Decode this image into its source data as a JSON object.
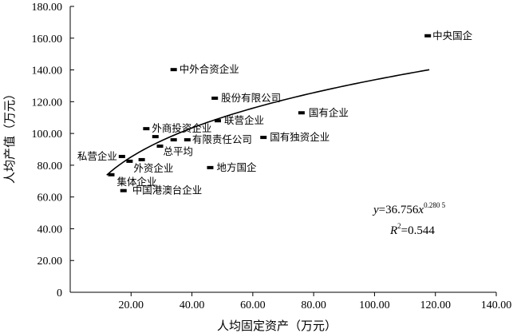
{
  "chart_data": {
    "type": "scatter",
    "title": "",
    "xlabel": "人均固定资产（万元）",
    "ylabel": "人均产值（万元）",
    "xlim": [
      0,
      140
    ],
    "ylim": [
      0,
      180
    ],
    "x_ticks": [
      "20.00",
      "40.00",
      "60.00",
      "80.00",
      "100.00",
      "120.00",
      "140.00"
    ],
    "y_ticks": [
      "0",
      "20.00",
      "40.00",
      "60.00",
      "80.00",
      "100.00",
      "120.00",
      "140.00",
      "160.00",
      "180.00"
    ],
    "points": [
      {
        "label": "中央国企",
        "x": 117.5,
        "y": 161.5
      },
      {
        "label": "中外合资企业",
        "x": 34.0,
        "y": 140.2
      },
      {
        "label": "股份有限公司",
        "x": 47.5,
        "y": 122.2
      },
      {
        "label": "国有企业",
        "x": 76.0,
        "y": 113.0
      },
      {
        "label": "联营企业",
        "x": 48.5,
        "y": 108.0
      },
      {
        "label": "外商投资企业",
        "x": 25.0,
        "y": 103.0
      },
      {
        "label": "国有独资企业",
        "x": 63.5,
        "y": 97.5
      },
      {
        "label": "有限责任公司",
        "x": 38.5,
        "y": 96.0
      },
      {
        "label": "",
        "x": 28.0,
        "y": 98.0
      },
      {
        "label": "",
        "x": 34.0,
        "y": 96.0
      },
      {
        "label": "私营企业",
        "x": 17.0,
        "y": 85.5
      },
      {
        "label": "总平均",
        "x": 29.5,
        "y": 92.0
      },
      {
        "label": "外资企业",
        "x": 19.5,
        "y": 82.5
      },
      {
        "label": "",
        "x": 23.5,
        "y": 83.5
      },
      {
        "label": "地方国企",
        "x": 46.0,
        "y": 78.5
      },
      {
        "label": "集体企业",
        "x": 13.5,
        "y": 74.0
      },
      {
        "label": "中国港澳台企业",
        "x": 17.5,
        "y": 64.0
      }
    ],
    "trendline": {
      "type": "power",
      "a": 36.756,
      "b": 0.2805,
      "x_from": 12,
      "x_to": 118
    },
    "annotations": {
      "eq_y": "y",
      "eq_mid": "=36.756",
      "eq_x": "x",
      "eq_exp": "0.280 5",
      "r2_r": "R",
      "r2_sup": "2",
      "r2_val": "=0.544"
    },
    "grid": false,
    "legend": "none"
  }
}
